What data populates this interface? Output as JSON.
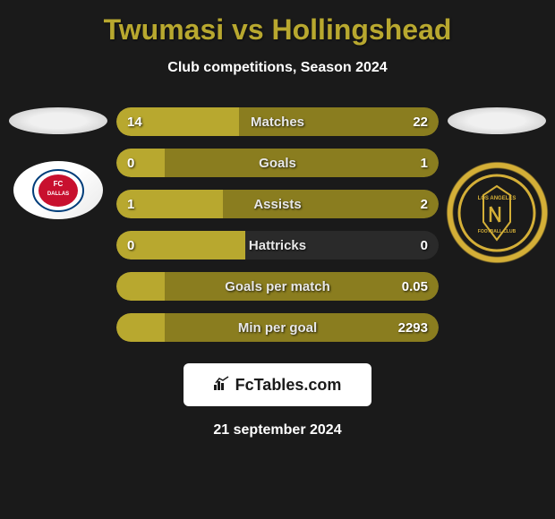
{
  "title": "Twumasi vs Hollingshead",
  "subtitle": "Club competitions, Season 2024",
  "colors": {
    "background": "#1a1a1a",
    "accent": "#b8a82f",
    "bar_left": "#b8a82f",
    "bar_right": "#8a7d1f",
    "text": "#ffffff",
    "row_bg": "#2a2a2a"
  },
  "player_left": {
    "club_name": "FC DALLAS",
    "club_colors": [
      "#ffffff",
      "#003d7a",
      "#c8102e"
    ]
  },
  "player_right": {
    "club_name": "LOS ANGELES FC",
    "club_colors": [
      "#1a1a1a",
      "#d4af37"
    ]
  },
  "stats": [
    {
      "label": "Matches",
      "left_value": "14",
      "right_value": "22",
      "left_pct": 38,
      "right_pct": 62
    },
    {
      "label": "Goals",
      "left_value": "0",
      "right_value": "1",
      "left_pct": 15,
      "right_pct": 85
    },
    {
      "label": "Assists",
      "left_value": "1",
      "right_value": "2",
      "left_pct": 33,
      "right_pct": 67
    },
    {
      "label": "Hattricks",
      "left_value": "0",
      "right_value": "0",
      "left_pct": 40,
      "right_pct": 0
    },
    {
      "label": "Goals per match",
      "left_value": "",
      "right_value": "0.05",
      "left_pct": 15,
      "right_pct": 85
    },
    {
      "label": "Min per goal",
      "left_value": "",
      "right_value": "2293",
      "left_pct": 15,
      "right_pct": 85
    }
  ],
  "footer": {
    "brand": "FcTables.com",
    "date": "21 september 2024"
  }
}
